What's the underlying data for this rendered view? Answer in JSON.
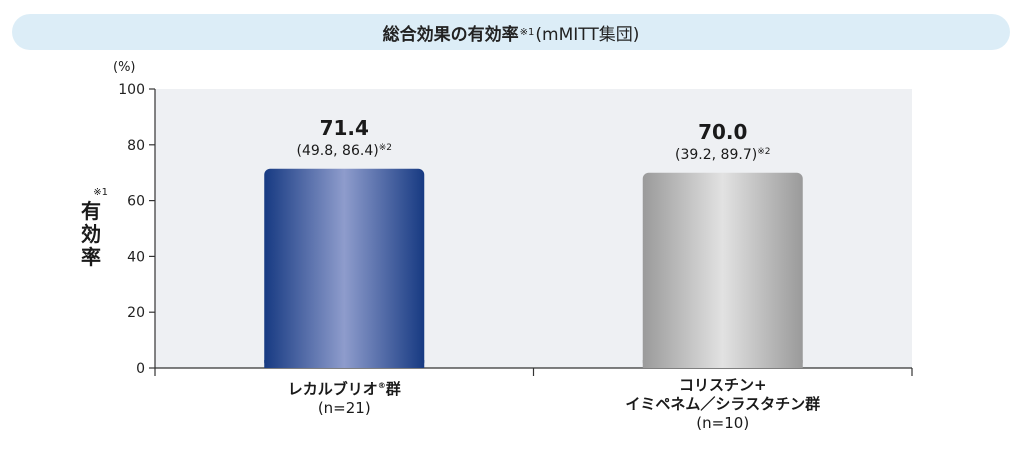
{
  "title": {
    "main": "総合効果の有効率",
    "mark": "※1",
    "suffix": "(mMITT集団)"
  },
  "y_axis": {
    "unit": "(%)",
    "label_mark": "※1",
    "label_chars": [
      "有",
      "効",
      "率"
    ]
  },
  "groups": [
    {
      "name_lines": [
        "レカルブリオ"
      ],
      "registered_mark": "®",
      "name_suffix": "群",
      "n_text": "(n=21)",
      "value_text": "71.4",
      "ci_text": "(49.8, 86.4)",
      "ci_mark": "※2"
    },
    {
      "name_lines": [
        "コリスチン+",
        "イミペネム／シラスタチン群"
      ],
      "n_text": "(n=10)",
      "value_text": "70.0",
      "ci_text": "(39.2, 89.7)",
      "ci_mark": "※2"
    }
  ],
  "colors": {
    "title_bg": "#dcedf7",
    "plot_bg": "#eef0f3",
    "bar1_dark": "#173a82",
    "bar1_light": "#8e9ccc",
    "bar2_dark": "#9a9a9a",
    "bar2_light": "#e2e2e2"
  },
  "chart_data": {
    "type": "bar",
    "title": "総合効果の有効率※1(mMITT集団)",
    "ylabel": "有効率※1",
    "yunit": "(%)",
    "ylim": [
      0,
      100
    ],
    "yticks": [
      0,
      20,
      40,
      60,
      80,
      100
    ],
    "categories": [
      "レカルブリオ®群",
      "コリスチン+イミペネム／シラスタチン群"
    ],
    "values": [
      71.4,
      70.0
    ],
    "ci": [
      [
        49.8,
        86.4
      ],
      [
        39.2,
        89.7
      ]
    ],
    "n": [
      21,
      10
    ],
    "grid": false,
    "legend": "none"
  }
}
